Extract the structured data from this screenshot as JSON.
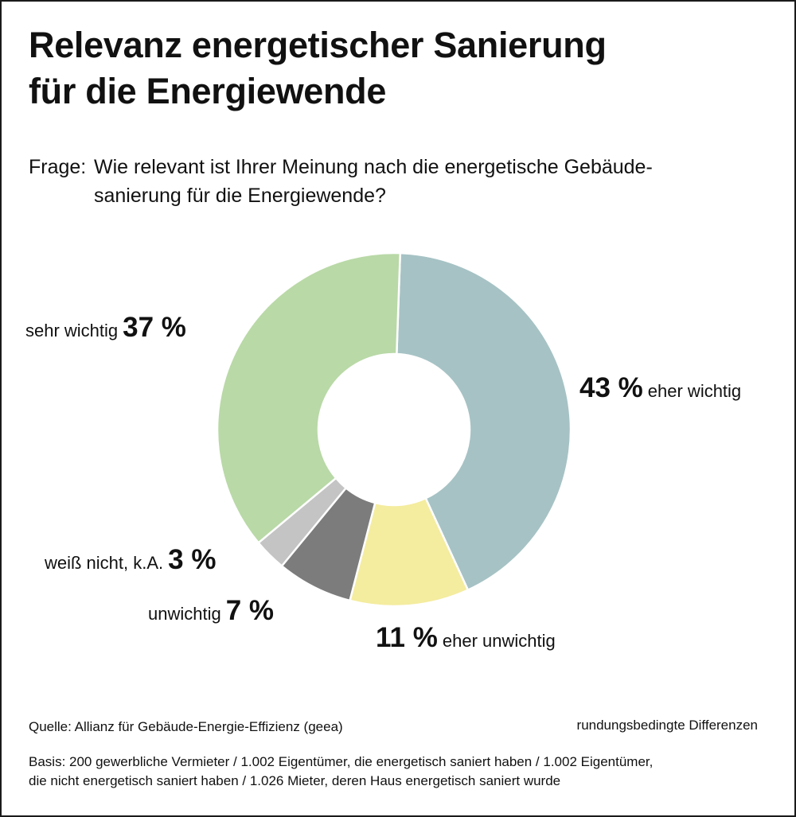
{
  "title_line1": "Relevanz energetischer Sanierung",
  "title_line2": "für die Energiewende",
  "question": {
    "prefix": "Frage:",
    "line1": "Wie relevant ist Ihrer Meinung nach die energetische Gebäude-",
    "line2": "sanierung für die Energiewende?"
  },
  "chart_data": {
    "type": "pie",
    "donut": true,
    "unit": "%",
    "slices": [
      {
        "label": "eher wichtig",
        "value": 43,
        "value_text": "43 %",
        "color": "#a6c2c4"
      },
      {
        "label": "eher unwichtig",
        "value": 11,
        "value_text": "11 %",
        "color": "#f4ec9f"
      },
      {
        "label": "unwichtig",
        "value": 7,
        "value_text": "7 %",
        "color": "#7c7c7c"
      },
      {
        "label": "weiß nicht, k.A.",
        "value": 3,
        "value_text": "3 %",
        "color": "#c4c4c4"
      },
      {
        "label": "sehr wichtig",
        "value": 37,
        "value_text": "37 %",
        "color": "#b9d9a7"
      }
    ]
  },
  "source": "Quelle: Allianz für Gebäude-Energie-Effizienz (geea)",
  "rounding_note": "rundungsbedingte Differenzen",
  "basis_line1": "Basis: 200 gewerbliche Vermieter / 1.002 Eigentümer, die energetisch saniert haben / 1.002 Eigentümer,",
  "basis_line2": "die nicht energetisch saniert haben / 1.026 Mieter, deren Haus energetisch saniert wurde"
}
